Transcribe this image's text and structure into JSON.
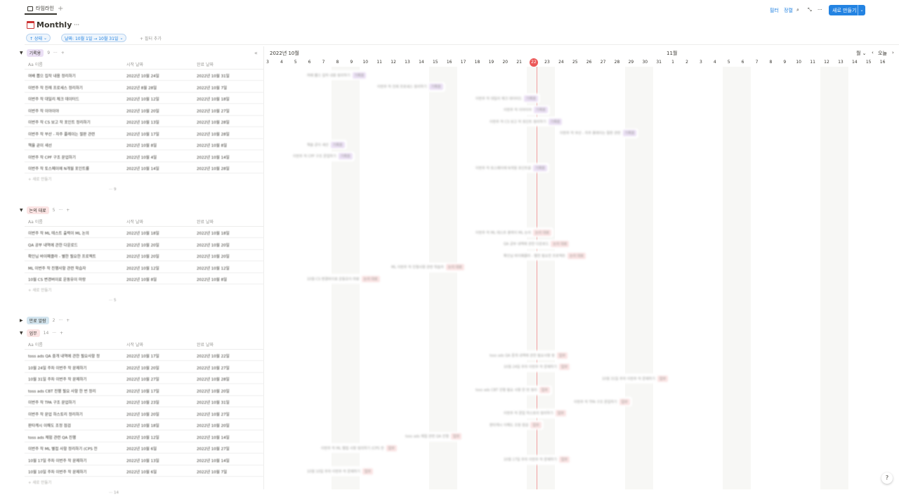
{
  "tab": {
    "label": "타임라인"
  },
  "toolbar": {
    "filter": "필터",
    "sort": "정렬",
    "new_label": "새로 만들기"
  },
  "page": {
    "title": "Monthly",
    "more": "···"
  },
  "chips": {
    "status": "↑ 상태",
    "date": "날짜: 10월 1일 → 10월 31일",
    "add_filter": "+ 필터 추가"
  },
  "columns": {
    "name": "Aa 이름",
    "start": "시작 날짜",
    "end": "완료 날짜"
  },
  "groups": [
    {
      "label": "기록용",
      "count": "9",
      "color": "#ebe0f5",
      "more_count": "··· 9",
      "rows": [
        {
          "name": "여배 뽑으 집작 내용 정리하기",
          "start": "2022년 10월 24일",
          "end": "2022년 10월 31일"
        },
        {
          "name": "이번주 작 진례 프로세스 정리하기",
          "start": "2022년 8월 28일",
          "end": "2022년 10월 7일"
        },
        {
          "name": "이번주 작 대일리 체크 데이터드",
          "start": "2022년 10월 12일",
          "end": "2022년 10월 18일"
        },
        {
          "name": "이번주 작 이야이야",
          "start": "2022년 10월 20일",
          "end": "2022년 10월 27일"
        },
        {
          "name": "이번주 작 CS 보고 작 포인트 정리하기",
          "start": "2022년 10월 13일",
          "end": "2022년 10월 28일"
        },
        {
          "name": "이번주 작 부산 - 자주 플레이는 절판 관련",
          "start": "2022년 10월 17일",
          "end": "2022년 10월 28일"
        },
        {
          "name": "책을 곧이 새선",
          "start": "2022년 10월 8일",
          "end": "2022년 10월 8일"
        },
        {
          "name": "이번주 작 CPF 구조 문업하기",
          "start": "2022년 10월 4일",
          "end": "2022년 10월 14일"
        },
        {
          "name": "이번주 작 토스페이에 N개월 포인트를",
          "start": "2022년 10월 14일",
          "end": "2022년 10월 28일"
        }
      ]
    },
    {
      "label": "논의 대료",
      "count": "5",
      "color": "#fbe4e4",
      "more_count": "··· 5",
      "rows": [
        {
          "name": "이번주 작 ML 테스트 출력이 ML 논의",
          "start": "2022년 10월 18일",
          "end": "2022년 10월 18일"
        },
        {
          "name": "QA 공부 내역에 관한 다운로드",
          "start": "2022년 10월 20일",
          "end": "2022년 10월 20일"
        },
        {
          "name": "확인님 바이패클라 - 별한 필요한 프로젝트",
          "start": "2022년 10월 20일",
          "end": "2022년 10월 20일"
        },
        {
          "name": "ML 이번주 작 진행사항 관련 학습자",
          "start": "2022년 10월 12일",
          "end": "2022년 10월 12일"
        },
        {
          "name": "10월 CS 변경버이료 운동유이 마랑",
          "start": "2022년 10월 8일",
          "end": "2022년 10월 8일"
        }
      ]
    },
    {
      "label": "만료 알람",
      "count": "2",
      "color": "#d3e5ef"
    },
    {
      "label": "업무",
      "count": "14",
      "color": "#fbe4e4",
      "more_count": "··· 14",
      "rows": [
        {
          "name": "toss ads QA 중개 내역에 관한 필요사항 정",
          "start": "2022년 10월 17일",
          "end": "2022년 10월 22일"
        },
        {
          "name": "10월 24일 주차 이번주 작 문제하기",
          "start": "2022년 10월 20일",
          "end": "2022년 10월 27일"
        },
        {
          "name": "10월 31일 주차 이번주 작 문제하기",
          "start": "2022년 10월 27일",
          "end": "2022년 10월 28일"
        },
        {
          "name": "toss ads CBT 진행 필요 사항 한 번 정리",
          "start": "2022년 10월 17일",
          "end": "2022년 10월 20일"
        },
        {
          "name": "이번주 작 TPA 구조 문업하기",
          "start": "2022년 10월 23일",
          "end": "2022년 10월 31일"
        },
        {
          "name": "이번주 작 문업 하스토리 정리하기",
          "start": "2022년 10월 20일",
          "end": "2022년 10월 27일"
        },
        {
          "name": "판타캐시 이해도 조정 점검",
          "start": "2022년 10월 18일",
          "end": "2022년 10월 20일"
        },
        {
          "name": "toss ads 체험 관련 QA 진행",
          "start": "2022년 10월 12일",
          "end": "2022년 10월 14일"
        },
        {
          "name": "이번주 작 ML 별접 사항 정리하기 (CPS 전",
          "start": "2022년 10월 6일",
          "end": "2022년 10월 27일"
        },
        {
          "name": "10월 17일 주차 이번주 작 문제하기",
          "start": "2022년 10월 13일",
          "end": "2022년 10월 14일"
        },
        {
          "name": "10월 10일 주차 이번주 작 문제하기",
          "start": "2022년 10월 6일",
          "end": "2022년 10월 7일"
        }
      ]
    }
  ],
  "new_row": "+ 새로 만들기",
  "timeline": {
    "month1": "2022년 10월",
    "month2": "11월",
    "days": [
      "3",
      "4",
      "5",
      "6",
      "7",
      "8",
      "9",
      "10",
      "11",
      "12",
      "13",
      "14",
      "15",
      "16",
      "17",
      "18",
      "19",
      "20",
      "21",
      "22",
      "23",
      "24",
      "25",
      "26",
      "27",
      "28",
      "29",
      "30",
      "31",
      "1",
      "2",
      "3",
      "4",
      "5",
      "6",
      "7",
      "8",
      "9",
      "10",
      "11",
      "12",
      "13",
      "14",
      "15",
      "16"
    ],
    "today": "22",
    "scale": "월 ⌄",
    "today_btn": "오늘",
    "prev": "‹",
    "next": "›"
  },
  "help": "?"
}
